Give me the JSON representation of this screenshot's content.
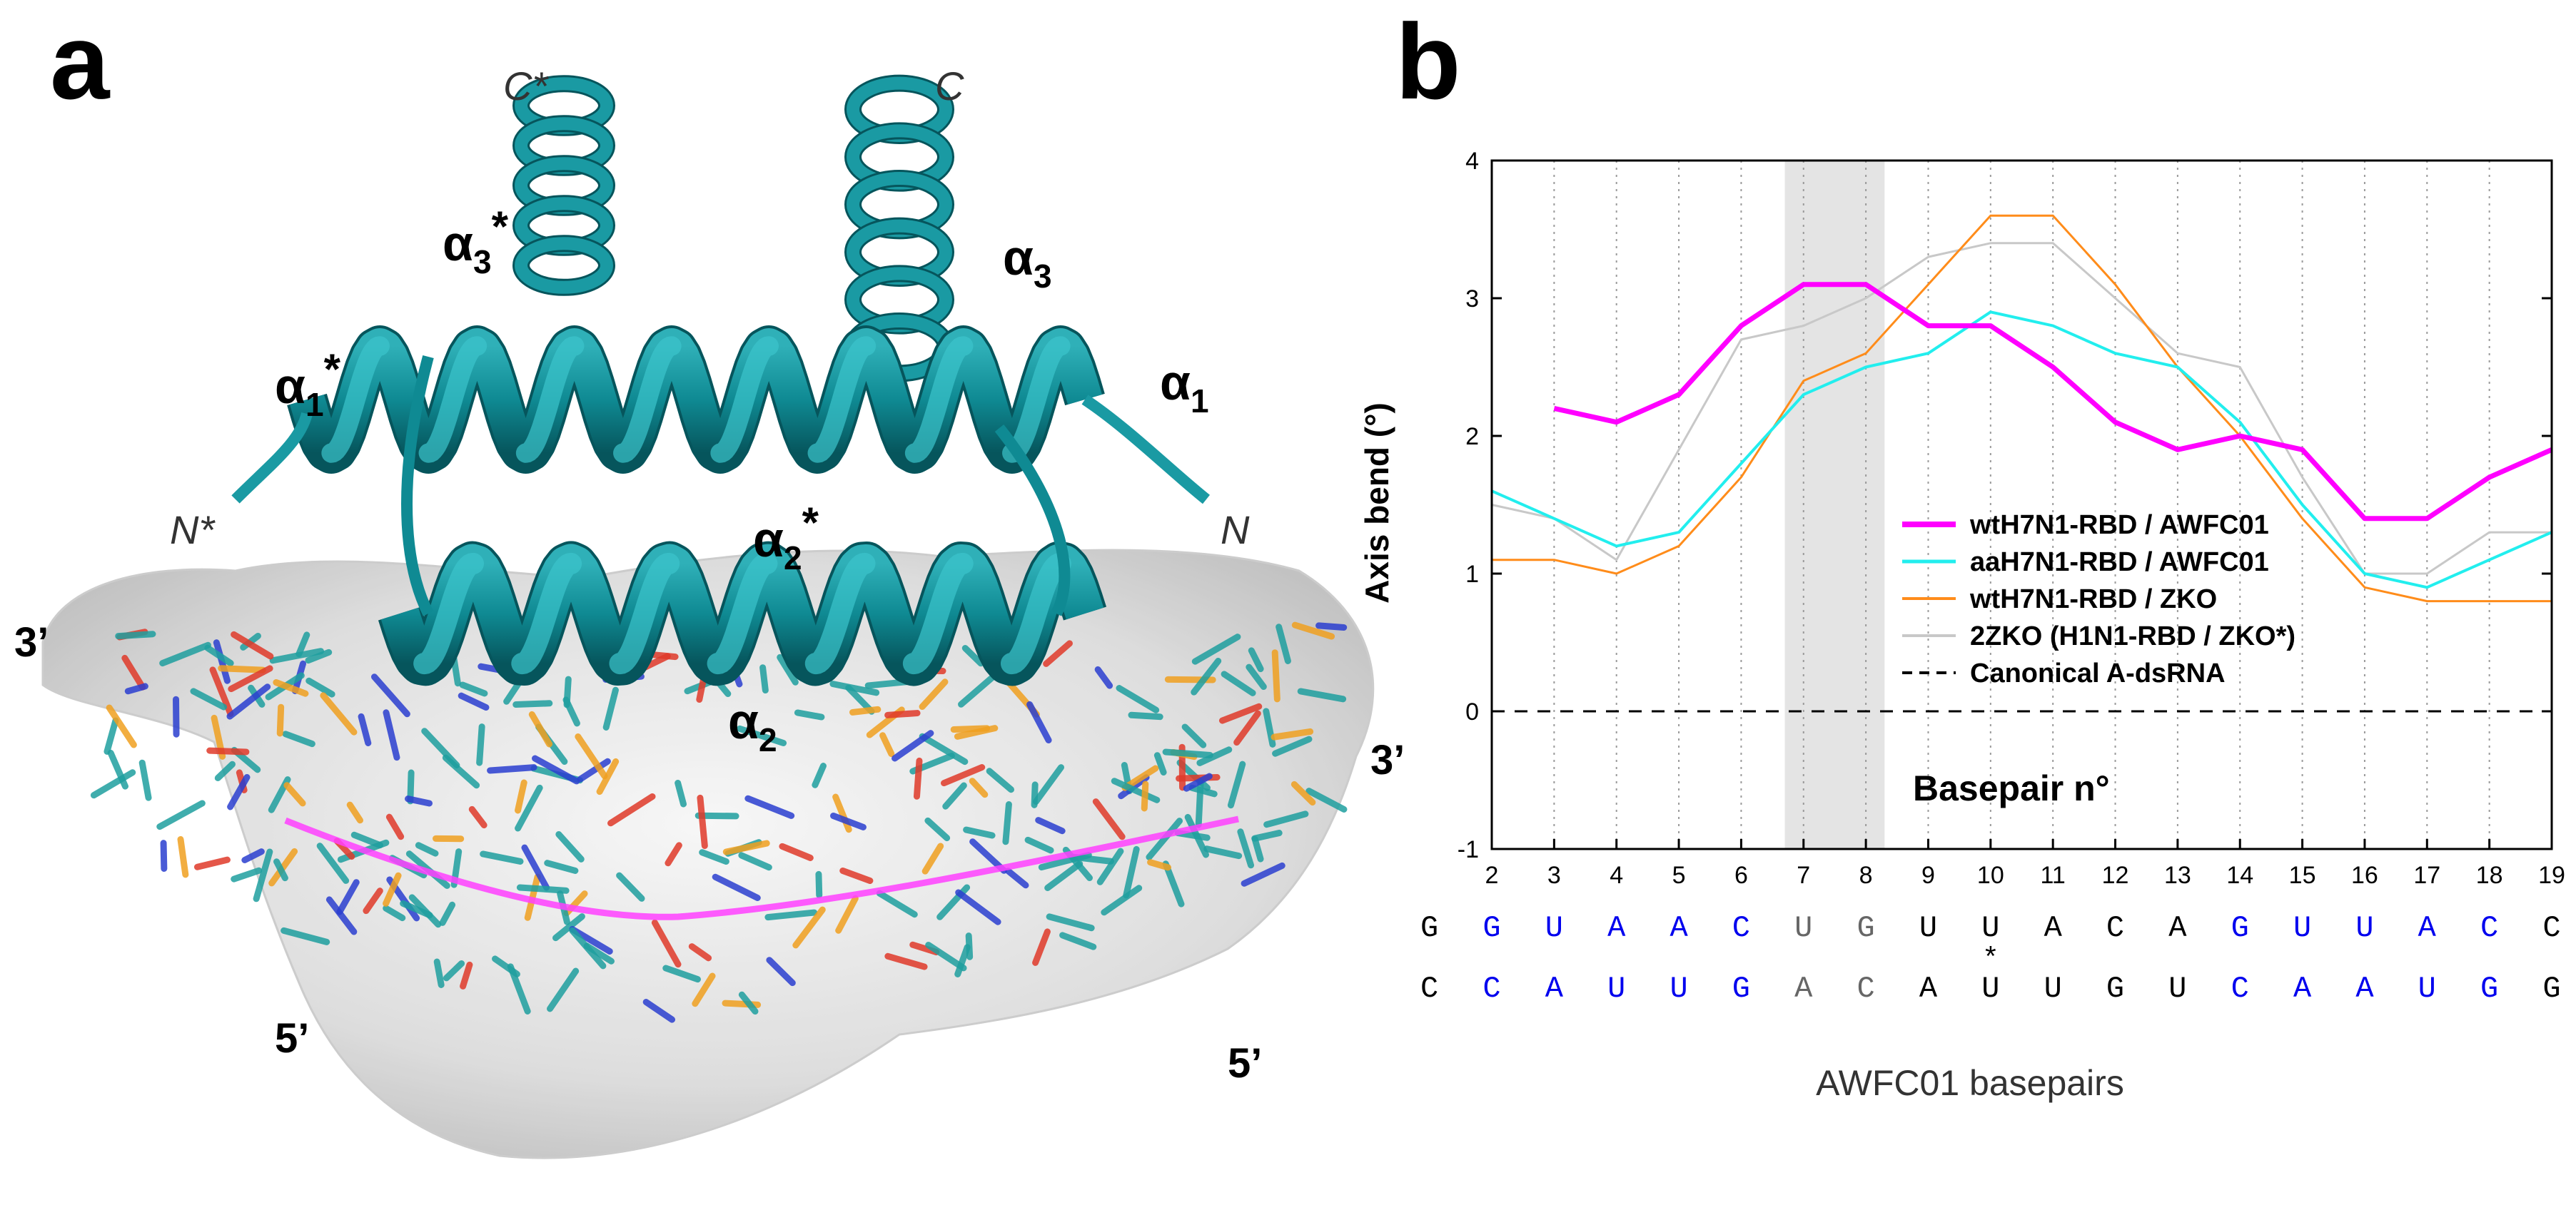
{
  "panel_a": {
    "letter": "a",
    "helix_labels": [
      {
        "base": "α",
        "sub": "3",
        "sup": "*"
      },
      {
        "base": "α",
        "sub": "3",
        "sup": ""
      },
      {
        "base": "α",
        "sub": "1",
        "sup": "*"
      },
      {
        "base": "α",
        "sub": "1",
        "sup": ""
      },
      {
        "base": "α",
        "sub": "2",
        "sup": "*"
      },
      {
        "base": "α",
        "sub": "2",
        "sup": ""
      }
    ],
    "terminus_labels": [
      "C*",
      "C",
      "N*",
      "N"
    ],
    "strand_end_labels": [
      "3’",
      "3’",
      "5’",
      "5’"
    ]
  },
  "chart_data": {
    "type": "line",
    "panel_letter": "b",
    "ylabel": "Axis bend (°)",
    "xlabel_inner": "Basepair n°",
    "xlabel_bottom": "AWFC01 basepairs",
    "ylim": [
      -1,
      4
    ],
    "xlim": [
      2,
      19
    ],
    "yticks": [
      "-1",
      "0",
      "1",
      "2",
      "3",
      "4"
    ],
    "xticks": [
      "2",
      "3",
      "4",
      "5",
      "6",
      "7",
      "8",
      "9",
      "10",
      "11",
      "12",
      "13",
      "14",
      "15",
      "16",
      "17",
      "18",
      "19"
    ],
    "highlight_band": [
      6.7,
      8.3
    ],
    "grid_x_dotted": true,
    "colors": {
      "magenta": "#ff00ff",
      "cyan": "#22eeee",
      "orange": "#ff8c1a",
      "gray": "#c8c8c8",
      "black": "#000000",
      "band": "#e4e4e4",
      "blue_base": "#0000ee",
      "gray_base": "#666666"
    },
    "series": [
      {
        "name": "wtH7N1-RBD / AWFC01",
        "color": "#ff00ff",
        "width": 7,
        "x": [
          3,
          4,
          5,
          6,
          7,
          8,
          9,
          10,
          11,
          12,
          13,
          14,
          15,
          16,
          17,
          18,
          19
        ],
        "y": [
          2.2,
          2.1,
          2.3,
          2.8,
          3.1,
          3.1,
          2.8,
          2.8,
          2.5,
          2.1,
          1.9,
          2.0,
          1.9,
          1.4,
          1.4,
          1.7,
          1.9
        ]
      },
      {
        "name": "aaH7N1-RBD / AWFC01",
        "color": "#22eeee",
        "width": 4,
        "x": [
          2,
          3,
          4,
          5,
          6,
          7,
          8,
          9,
          10,
          11,
          12,
          13,
          14,
          15,
          16,
          17,
          18,
          19
        ],
        "y": [
          1.6,
          1.4,
          1.2,
          1.3,
          1.8,
          2.3,
          2.5,
          2.6,
          2.9,
          2.8,
          2.6,
          2.5,
          2.1,
          1.5,
          1.0,
          0.9,
          1.1,
          1.3
        ]
      },
      {
        "name": "wtH7N1-RBD / ZKO",
        "color": "#ff8c1a",
        "width": 3,
        "x": [
          2,
          3,
          4,
          5,
          6,
          7,
          8,
          9,
          10,
          11,
          12,
          13,
          14,
          15,
          16,
          17,
          18,
          19
        ],
        "y": [
          1.1,
          1.1,
          1.0,
          1.2,
          1.7,
          2.4,
          2.6,
          3.1,
          3.6,
          3.6,
          3.1,
          2.5,
          2.0,
          1.4,
          0.9,
          0.8,
          0.8,
          0.8
        ]
      },
      {
        "name": "2ZKO (H1N1-RBD / ZKO*)",
        "color": "#c8c8c8",
        "width": 3,
        "x": [
          2,
          3,
          4,
          5,
          6,
          7,
          8,
          9,
          10,
          11,
          12,
          13,
          14,
          15,
          16,
          17,
          18,
          19
        ],
        "y": [
          1.5,
          1.4,
          1.1,
          1.9,
          2.7,
          2.8,
          3.0,
          3.3,
          3.4,
          3.4,
          3.0,
          2.6,
          2.5,
          1.7,
          1.0,
          1.0,
          1.3,
          1.3
        ]
      },
      {
        "name": "Canonical A-dsRNA",
        "color": "#000000",
        "width": 3,
        "dashed": true,
        "x": [
          2,
          19
        ],
        "y": [
          0,
          0
        ]
      }
    ],
    "sequence_top": [
      {
        "x": 1,
        "b": "G",
        "c": "black"
      },
      {
        "x": 2,
        "b": "G",
        "c": "blue"
      },
      {
        "x": 3,
        "b": "U",
        "c": "blue"
      },
      {
        "x": 4,
        "b": "A",
        "c": "blue"
      },
      {
        "x": 5,
        "b": "A",
        "c": "blue"
      },
      {
        "x": 6,
        "b": "C",
        "c": "blue"
      },
      {
        "x": 7,
        "b": "U",
        "c": "gray"
      },
      {
        "x": 8,
        "b": "G",
        "c": "gray"
      },
      {
        "x": 9,
        "b": "U",
        "c": "black"
      },
      {
        "x": 10,
        "b": "U",
        "c": "black"
      },
      {
        "x": 11,
        "b": "A",
        "c": "black"
      },
      {
        "x": 12,
        "b": "C",
        "c": "black"
      },
      {
        "x": 13,
        "b": "A",
        "c": "black"
      },
      {
        "x": 14,
        "b": "G",
        "c": "blue"
      },
      {
        "x": 15,
        "b": "U",
        "c": "blue"
      },
      {
        "x": 16,
        "b": "U",
        "c": "blue"
      },
      {
        "x": 17,
        "b": "A",
        "c": "blue"
      },
      {
        "x": 18,
        "b": "C",
        "c": "blue"
      },
      {
        "x": 19,
        "b": "C",
        "c": "black"
      }
    ],
    "sequence_bottom": [
      {
        "x": 1,
        "b": "C",
        "c": "black"
      },
      {
        "x": 2,
        "b": "C",
        "c": "blue"
      },
      {
        "x": 3,
        "b": "A",
        "c": "blue"
      },
      {
        "x": 4,
        "b": "U",
        "c": "blue"
      },
      {
        "x": 5,
        "b": "U",
        "c": "blue"
      },
      {
        "x": 6,
        "b": "G",
        "c": "blue"
      },
      {
        "x": 7,
        "b": "A",
        "c": "gray"
      },
      {
        "x": 8,
        "b": "C",
        "c": "gray"
      },
      {
        "x": 9,
        "b": "A",
        "c": "black"
      },
      {
        "x": 10,
        "b": "U",
        "c": "black"
      },
      {
        "x": 11,
        "b": "U",
        "c": "black"
      },
      {
        "x": 12,
        "b": "G",
        "c": "black"
      },
      {
        "x": 13,
        "b": "U",
        "c": "black"
      },
      {
        "x": 14,
        "b": "C",
        "c": "blue"
      },
      {
        "x": 15,
        "b": "A",
        "c": "blue"
      },
      {
        "x": 16,
        "b": "A",
        "c": "blue"
      },
      {
        "x": 17,
        "b": "U",
        "c": "blue"
      },
      {
        "x": 18,
        "b": "G",
        "c": "blue"
      },
      {
        "x": 19,
        "b": "G",
        "c": "black"
      }
    ],
    "sequence_marker": {
      "x": 10,
      "text": "*"
    }
  }
}
